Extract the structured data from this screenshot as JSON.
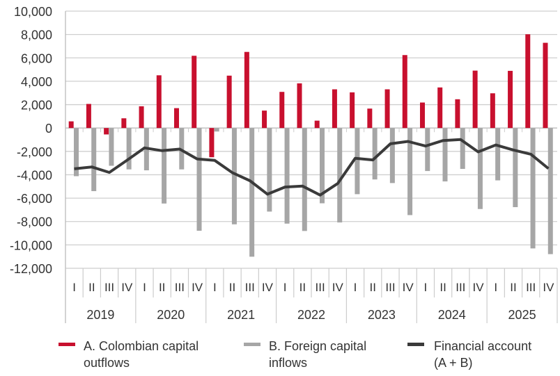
{
  "chart_data": {
    "type": "bar",
    "title": "",
    "xlabel": "",
    "ylabel": "",
    "ylim": [
      -12000,
      10000
    ],
    "yticks": [
      10000,
      8000,
      6000,
      4000,
      2000,
      0,
      -2000,
      -4000,
      -6000,
      -8000,
      -10000,
      -12000
    ],
    "ytick_labels": [
      "10,000",
      "8,000",
      "6,000",
      "4,000",
      "2,000",
      "0",
      "-2,000",
      "-4,000",
      "-6,000",
      "-8,000",
      "-10,000",
      "-12,000"
    ],
    "grid": true,
    "legend_position": "bottom",
    "years": [
      "2019",
      "2020",
      "2021",
      "2022",
      "2023",
      "2024",
      "2025"
    ],
    "quarters": [
      "I",
      "II",
      "III",
      "IV"
    ],
    "series": [
      {
        "name": "A. Colombian capital outflows",
        "kind": "bar",
        "color": "#c8102e",
        "values": [
          570,
          2060,
          -550,
          830,
          1860,
          4510,
          1700,
          6180,
          -2500,
          4480,
          6510,
          1490,
          3090,
          3820,
          630,
          3310,
          3050,
          1660,
          3310,
          6240,
          2180,
          3470,
          2460,
          4910,
          2970,
          4890,
          8020,
          7290
        ]
      },
      {
        "name": "B. Foreign capital inflows",
        "kind": "bar",
        "color": "#a6a6a6",
        "values": [
          -4120,
          -5400,
          -3230,
          -3540,
          -3620,
          -6460,
          -3540,
          -8790,
          -300,
          -8240,
          -11010,
          -7150,
          -8180,
          -8810,
          -6440,
          -8080,
          -5660,
          -4400,
          -4710,
          -7450,
          -3680,
          -4570,
          -3500,
          -6930,
          -4480,
          -6770,
          -10300,
          -10790
        ]
      },
      {
        "name": "Financial account (A + B)",
        "kind": "line",
        "color": "#3a3a3a",
        "values": [
          -3490,
          -3330,
          -3800,
          -2760,
          -1700,
          -1940,
          -1800,
          -2650,
          -2770,
          -3820,
          -4510,
          -5660,
          -5050,
          -4970,
          -5740,
          -4750,
          -2590,
          -2730,
          -1350,
          -1150,
          -1540,
          -1070,
          -990,
          -2040,
          -1450,
          -1880,
          -2240,
          -3470
        ]
      }
    ],
    "legend": [
      {
        "line1": "A. Colombian capital",
        "line2": "outflows"
      },
      {
        "line1": "B. Foreign capital",
        "line2": "inflows"
      },
      {
        "line1": "Financial account",
        "line2": "(A + B)"
      }
    ]
  }
}
